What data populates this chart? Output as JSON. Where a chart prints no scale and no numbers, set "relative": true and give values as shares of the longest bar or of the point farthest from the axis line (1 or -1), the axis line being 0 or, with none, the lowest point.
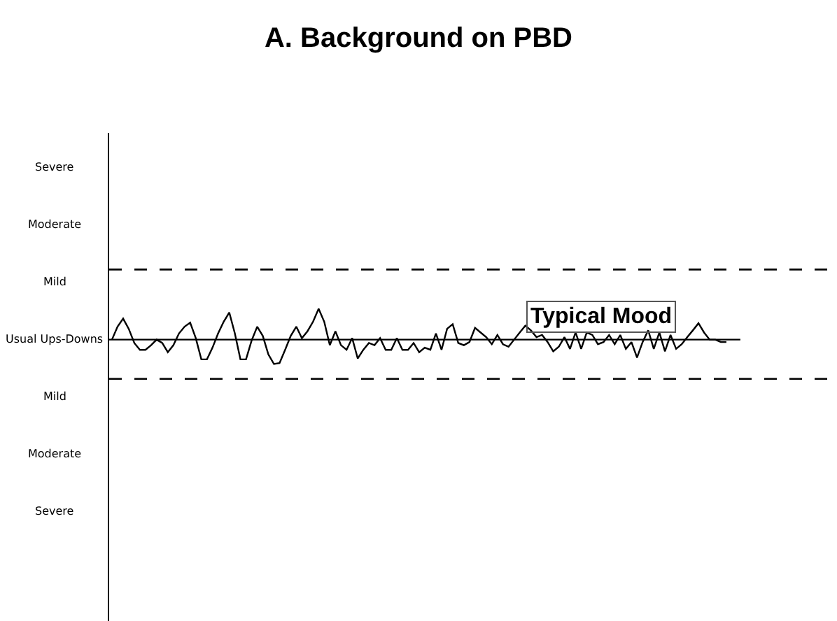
{
  "chart_data": {
    "type": "line",
    "title": "A. Background on PBD",
    "relative": true,
    "legend": false,
    "marker": "none",
    "line_style": "solid",
    "categories": [
      null,
      null,
      null,
      null,
      null,
      null,
      null,
      null,
      null,
      null,
      null,
      null,
      null,
      null,
      null,
      null,
      null,
      null,
      null,
      null,
      null,
      null,
      null,
      null,
      null,
      null,
      null,
      null,
      null,
      null,
      null,
      null,
      null,
      null,
      null,
      null,
      null,
      null,
      null,
      null,
      null,
      null,
      null,
      null,
      null,
      null,
      null,
      null,
      null,
      null,
      null,
      null,
      null,
      null,
      null,
      null,
      null,
      null,
      null,
      null,
      null,
      null,
      null,
      null,
      null,
      null,
      null,
      null,
      null,
      null,
      null,
      null,
      null,
      null,
      null,
      null,
      null,
      null,
      null,
      null,
      null,
      null,
      null,
      null,
      null,
      null,
      null,
      null,
      null,
      null,
      null,
      null,
      null,
      null,
      null,
      null,
      null,
      null,
      null,
      null,
      null,
      null,
      null,
      null,
      null,
      null,
      null,
      null,
      null,
      null,
      null
    ],
    "series": [
      {
        "color": "#000000",
        "values": [
          0,
          0.42,
          0.68,
          0.35,
          -0.11,
          -0.33,
          -0.33,
          -0.18,
          0,
          -0.11,
          -0.41,
          -0.18,
          0.2,
          0.42,
          0.55,
          0.05,
          -0.64,
          -0.64,
          -0.26,
          0.2,
          0.58,
          0.88,
          0.2,
          -0.64,
          -0.64,
          -0.03,
          0.42,
          0.12,
          -0.48,
          -0.79,
          -0.76,
          -0.33,
          0.12,
          0.42,
          0.05,
          0.27,
          0.58,
          1,
          0.58,
          -0.18,
          0.27,
          -0.18,
          -0.33,
          0.05,
          -0.61,
          -0.33,
          -0.11,
          -0.18,
          0.05,
          -0.33,
          -0.33,
          0.05,
          -0.33,
          -0.33,
          -0.11,
          -0.41,
          -0.26,
          -0.33,
          0.2,
          -0.33,
          0.35,
          0.5,
          -0.11,
          -0.18,
          -0.08,
          0.38,
          0.23,
          0.08,
          -0.15,
          0.15,
          -0.15,
          -0.23,
          0,
          0.23,
          0.45,
          0.3,
          0.08,
          0.15,
          -0.08,
          -0.38,
          -0.23,
          0.08,
          -0.3,
          0.23,
          -0.3,
          0.23,
          0.15,
          -0.15,
          -0.08,
          0.15,
          -0.15,
          0.15,
          -0.3,
          -0.08,
          -0.58,
          -0.08,
          0.3,
          -0.3,
          0.23,
          -0.38,
          0.15,
          -0.3,
          -0.15,
          0.08,
          0.3,
          0.53,
          0.23,
          0,
          0,
          -0.08,
          -0.08
        ]
      }
    ],
    "ref_lines": [
      {
        "axis": "y",
        "value": 2.27,
        "line_style": "dashed",
        "color": "#000000"
      },
      {
        "axis": "y",
        "value": -1.27,
        "line_style": "dashed",
        "color": "#000000"
      }
    ],
    "annotations": [
      "Severe",
      "Moderate",
      "Mild",
      "Usual Ups-Downs",
      "Mild",
      "Moderate",
      "Severe",
      "Typical Mood"
    ]
  }
}
